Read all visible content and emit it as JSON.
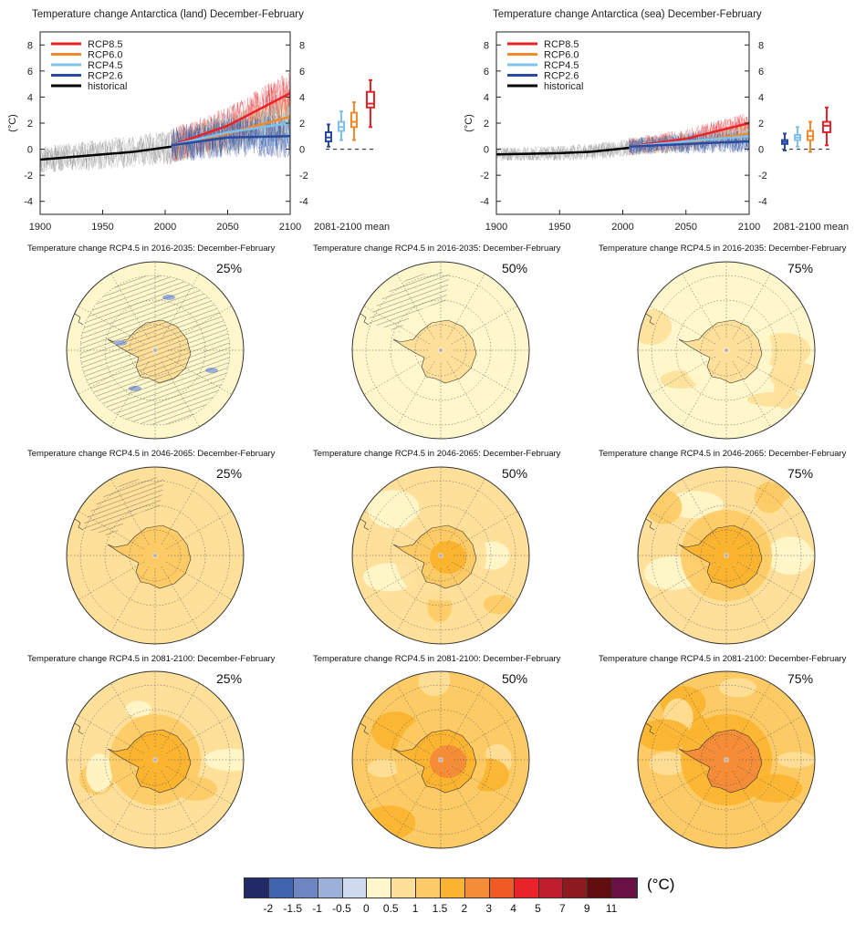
{
  "chart_data": [
    {
      "type": "line",
      "title": "Temperature change Antarctica (land) December-February",
      "ylabel": "(°C)",
      "xlim": [
        1900,
        2100
      ],
      "ylim": [
        -5,
        9
      ],
      "xticks": [
        "1900",
        "1950",
        "2000",
        "2050",
        "2100"
      ],
      "yticks": [
        "-4",
        "-2",
        "0",
        "2",
        "4",
        "6",
        "8"
      ],
      "inset_label": "2081-2100 mean",
      "series": [
        {
          "name": "historical",
          "color": "#000000",
          "x": [
            1900,
            1925,
            1950,
            1975,
            2005
          ],
          "y": [
            -0.8,
            -0.6,
            -0.4,
            -0.2,
            0.2
          ]
        },
        {
          "name": "RCP2.6",
          "color": "#2a4aa0",
          "x": [
            2005,
            2050,
            2100
          ],
          "y": [
            0.3,
            0.9,
            1.0
          ]
        },
        {
          "name": "RCP4.5",
          "color": "#80c0ec",
          "x": [
            2005,
            2050,
            2100
          ],
          "y": [
            0.3,
            1.3,
            2.0
          ]
        },
        {
          "name": "RCP6.0",
          "color": "#f08a2a",
          "x": [
            2005,
            2050,
            2100
          ],
          "y": [
            0.3,
            1.2,
            2.5
          ]
        },
        {
          "name": "RCP8.5",
          "color": "#e8232a",
          "x": [
            2005,
            2050,
            2100
          ],
          "y": [
            0.3,
            1.8,
            4.3
          ]
        }
      ],
      "boxplots": [
        {
          "name": "RCP2.6",
          "median": 0.9,
          "q1": 0.6,
          "q3": 1.3,
          "min": 0.2,
          "max": 1.9
        },
        {
          "name": "RCP4.5",
          "median": 1.7,
          "q1": 1.4,
          "q3": 2.1,
          "min": 0.7,
          "max": 2.9
        },
        {
          "name": "RCP6.0",
          "median": 2.1,
          "q1": 1.7,
          "q3": 2.8,
          "min": 0.7,
          "max": 3.6
        },
        {
          "name": "RCP8.5",
          "median": 3.5,
          "q1": 3.2,
          "q3": 4.4,
          "min": 1.7,
          "max": 5.3
        }
      ]
    },
    {
      "type": "line",
      "title": "Temperature change Antarctica (sea) December-February",
      "ylabel": "(°C)",
      "xlim": [
        1900,
        2100
      ],
      "ylim": [
        -5,
        9
      ],
      "xticks": [
        "1900",
        "1950",
        "2000",
        "2050",
        "2100"
      ],
      "yticks": [
        "-4",
        "-2",
        "0",
        "2",
        "4",
        "6",
        "8"
      ],
      "inset_label": "2081-2100 mean",
      "series": [
        {
          "name": "historical",
          "color": "#000000",
          "x": [
            1900,
            1925,
            1950,
            1975,
            2005
          ],
          "y": [
            -0.4,
            -0.35,
            -0.3,
            -0.2,
            0.1
          ]
        },
        {
          "name": "RCP2.6",
          "color": "#2a4aa0",
          "x": [
            2005,
            2050,
            2100
          ],
          "y": [
            0.2,
            0.4,
            0.6
          ]
        },
        {
          "name": "RCP4.5",
          "color": "#80c0ec",
          "x": [
            2005,
            2050,
            2100
          ],
          "y": [
            0.2,
            0.6,
            1.0
          ]
        },
        {
          "name": "RCP6.0",
          "color": "#f08a2a",
          "x": [
            2005,
            2050,
            2100
          ],
          "y": [
            0.2,
            0.5,
            1.2
          ]
        },
        {
          "name": "RCP8.5",
          "color": "#e8232a",
          "x": [
            2005,
            2050,
            2100
          ],
          "y": [
            0.2,
            0.8,
            2.0
          ]
        }
      ],
      "boxplots": [
        {
          "name": "RCP2.6",
          "median": 0.55,
          "q1": 0.4,
          "q3": 0.7,
          "min": -0.1,
          "max": 1.2
        },
        {
          "name": "RCP4.5",
          "median": 0.9,
          "q1": 0.7,
          "q3": 1.1,
          "min": 0.2,
          "max": 1.7
        },
        {
          "name": "RCP6.0",
          "median": 1.0,
          "q1": 0.7,
          "q3": 1.4,
          "min": -0.2,
          "max": 2.1
        },
        {
          "name": "RCP8.5",
          "median": 1.8,
          "q1": 1.3,
          "q3": 2.1,
          "min": 0.3,
          "max": 3.2
        }
      ]
    }
  ],
  "legend": [
    "RCP8.5",
    "RCP6.0",
    "RCP4.5",
    "RCP2.6",
    "historical"
  ],
  "maps": [
    {
      "title": "Temperature change RCP4.5 in 2016-2035: December-February",
      "percentile": "25%",
      "ocean": 5,
      "land": 6,
      "core": 6,
      "hatched": "full",
      "blue_spots": true
    },
    {
      "title": "Temperature change RCP4.5 in 2016-2035: December-February",
      "percentile": "50%",
      "ocean": 5,
      "land": 6,
      "core": 6,
      "hatched": "partial"
    },
    {
      "title": "Temperature change RCP4.5 in 2016-2035: December-February",
      "percentile": "75%",
      "ocean": 5,
      "land": 6,
      "core": 6,
      "hatched": "none",
      "blobs": 6
    },
    {
      "title": "Temperature change RCP4.5 in 2046-2065: December-February",
      "percentile": "25%",
      "ocean": 6,
      "land": 7,
      "core": 7,
      "hatched": "partial"
    },
    {
      "title": "Temperature change RCP4.5 in 2046-2065: December-February",
      "percentile": "50%",
      "ocean": 6,
      "land": 7,
      "core": 8,
      "hatched": "none",
      "blobs": 5
    },
    {
      "title": "Temperature change RCP4.5 in 2046-2065: December-February",
      "percentile": "75%",
      "ocean": 6,
      "land": 8,
      "core": 8,
      "hatched": "none",
      "blobs": 7
    },
    {
      "title": "Temperature change RCP4.5 in 2081-2100: December-February",
      "percentile": "25%",
      "ocean": 6,
      "land": 8,
      "core": 8,
      "hatched": "none",
      "blobs": 5
    },
    {
      "title": "Temperature change RCP4.5 in 2081-2100: December-February",
      "percentile": "50%",
      "ocean": 7,
      "land": 8,
      "core": 9,
      "hatched": "none",
      "blobs": 6
    },
    {
      "title": "Temperature change RCP4.5 in 2081-2100: December-February",
      "percentile": "75%",
      "ocean": 7,
      "land": 9,
      "core": 9,
      "hatched": "none",
      "blobs": 8
    }
  ],
  "colorbar": {
    "unit": "(°C)",
    "colors": [
      "#222a66",
      "#4064b0",
      "#6f85c2",
      "#9db0da",
      "#d0daee",
      "#fff7cc",
      "#fee09a",
      "#fdcb65",
      "#fbb42f",
      "#f58c37",
      "#f05a24",
      "#e8232a",
      "#be1e2d",
      "#8c1a1e",
      "#620d0e",
      "#6a1044"
    ],
    "labels": [
      "-2",
      "-1.5",
      "-1",
      "-0.5",
      "0",
      "0.5",
      "1",
      "1.5",
      "2",
      "3",
      "4",
      "5",
      "7",
      "9",
      "11"
    ]
  }
}
